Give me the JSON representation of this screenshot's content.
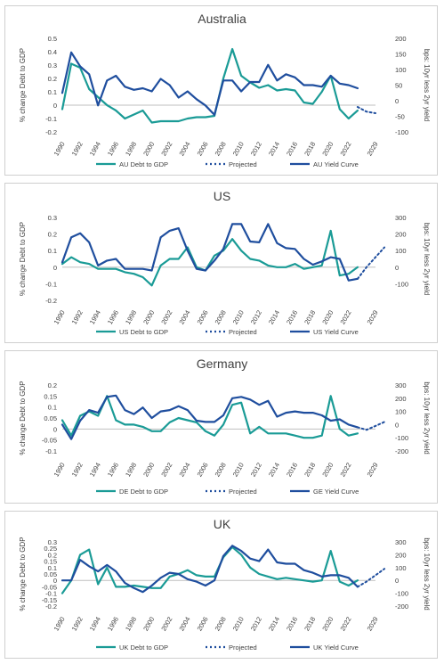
{
  "colors": {
    "debt": "#1a9b96",
    "yield": "#1f4e9e",
    "projected": "#1f4e9e",
    "axis": "#bfbfbf",
    "text": "#404040"
  },
  "chart_data": [
    {
      "type": "line",
      "title": "Australia",
      "ylabel": "% change Debt to GDP",
      "y2label": "bps: 10yr less 2yr yield",
      "ylim": [
        -0.2,
        0.5
      ],
      "yticks": [
        "-0.2",
        "-0.1",
        "0",
        "0.1",
        "0.2",
        "0.3",
        "0.4",
        "0.5"
      ],
      "y2lim": [
        -100,
        200
      ],
      "y2ticks": [
        "-100",
        "-50",
        "0",
        "50",
        "100",
        "150",
        "200"
      ],
      "xticks": [
        "1990",
        "1992",
        "1994",
        "1996",
        "1998",
        "2000",
        "2002",
        "2004",
        "2006",
        "2008",
        "2010",
        "2012",
        "2014",
        "2016",
        "2018",
        "2020",
        "2022",
        "2029"
      ],
      "legend": [
        "AU Debt to GDP",
        "Projected",
        "AU Yield Curve"
      ],
      "legend_position": "bottom",
      "series": [
        {
          "name": "AU Debt to GDP",
          "axis": "left",
          "x": [
            1990,
            1991,
            1992,
            1993,
            1994,
            1995,
            1996,
            1997,
            1998,
            1999,
            2000,
            2001,
            2002,
            2003,
            2004,
            2005,
            2006,
            2007,
            2008,
            2009,
            2010,
            2011,
            2012,
            2013,
            2014,
            2015,
            2016,
            2017,
            2018,
            2019,
            2020,
            2021,
            2022,
            2023
          ],
          "values": [
            -0.03,
            0.31,
            0.28,
            0.12,
            0.06,
            0.0,
            -0.04,
            -0.1,
            -0.07,
            -0.04,
            -0.13,
            -0.12,
            -0.12,
            -0.12,
            -0.1,
            -0.09,
            -0.09,
            -0.08,
            0.2,
            0.42,
            0.22,
            0.17,
            0.13,
            0.15,
            0.11,
            0.12,
            0.11,
            0.02,
            0.01,
            0.1,
            0.22,
            -0.03,
            -0.1,
            -0.04
          ]
        },
        {
          "name": "AU Yield Curve",
          "axis": "right",
          "x": [
            1990,
            1991,
            1992,
            1993,
            1994,
            1995,
            1996,
            1997,
            1998,
            1999,
            2000,
            2001,
            2002,
            2003,
            2004,
            2005,
            2006,
            2007,
            2008,
            2009,
            2010,
            2011,
            2012,
            2013,
            2014,
            2015,
            2016,
            2017,
            2018,
            2019,
            2020,
            2021,
            2022,
            2023
          ],
          "values": [
            25,
            155,
            110,
            85,
            -15,
            65,
            80,
            45,
            35,
            40,
            30,
            70,
            50,
            10,
            30,
            5,
            -15,
            -45,
            65,
            65,
            30,
            60,
            60,
            115,
            65,
            85,
            75,
            50,
            50,
            45,
            80,
            55,
            50,
            40
          ]
        },
        {
          "name": "Projected",
          "axis": "right",
          "style": "dotted",
          "x": [
            2023,
            2024,
            2025
          ],
          "values": [
            -20,
            -35,
            -40
          ]
        }
      ]
    },
    {
      "type": "line",
      "title": "US",
      "ylabel": "% change Debt to GDP",
      "y2label": "bps: 10yr less 2yr yield",
      "ylim": [
        -0.2,
        0.3
      ],
      "yticks": [
        "-0.2",
        "-0.1",
        "0",
        "0.1",
        "0.2",
        "0.3"
      ],
      "y2lim": [
        -200,
        300
      ],
      "y2ticks": [
        "-100",
        "0",
        "100",
        "200",
        "300"
      ],
      "xticks": [
        "1990",
        "1992",
        "1994",
        "1996",
        "1998",
        "2000",
        "2002",
        "2004",
        "2006",
        "2008",
        "2010",
        "2012",
        "2014",
        "2016",
        "2018",
        "2020",
        "2022",
        "2029"
      ],
      "legend": [
        "US Debt to GDP",
        "Projected",
        "US Yield Curve"
      ],
      "legend_position": "bottom",
      "series": [
        {
          "name": "US Debt to GDP",
          "axis": "left",
          "x": [
            1990,
            1991,
            1992,
            1993,
            1994,
            1995,
            1996,
            1997,
            1998,
            1999,
            2000,
            2001,
            2002,
            2003,
            2004,
            2005,
            2006,
            2007,
            2008,
            2009,
            2010,
            2011,
            2012,
            2013,
            2014,
            2015,
            2016,
            2017,
            2018,
            2019,
            2020,
            2021,
            2022,
            2023
          ],
          "values": [
            0.02,
            0.06,
            0.03,
            0.02,
            -0.01,
            -0.01,
            -0.01,
            -0.03,
            -0.04,
            -0.06,
            -0.11,
            0.01,
            0.05,
            0.05,
            0.12,
            0.0,
            -0.02,
            0.07,
            0.1,
            0.17,
            0.1,
            0.05,
            0.04,
            0.01,
            0.0,
            0.0,
            0.02,
            -0.01,
            0.0,
            0.01,
            0.22,
            -0.05,
            -0.04,
            0.0
          ]
        },
        {
          "name": "US Yield Curve",
          "axis": "right",
          "x": [
            1990,
            1991,
            1992,
            1993,
            1994,
            1995,
            1996,
            1997,
            1998,
            1999,
            2000,
            2001,
            2002,
            2003,
            2004,
            2005,
            2006,
            2007,
            2008,
            2009,
            2010,
            2011,
            2012,
            2013,
            2014,
            2015,
            2016,
            2017,
            2018,
            2019,
            2020,
            2021,
            2022,
            2023
          ],
          "values": [
            30,
            180,
            205,
            150,
            10,
            40,
            50,
            -10,
            -10,
            -10,
            -20,
            180,
            220,
            235,
            100,
            -10,
            -20,
            40,
            110,
            260,
            260,
            155,
            150,
            260,
            145,
            115,
            110,
            50,
            15,
            35,
            60,
            50,
            -80,
            -70
          ]
        },
        {
          "name": "Projected",
          "axis": "right",
          "style": "dotted",
          "x": [
            2023,
            2024,
            2025,
            2026
          ],
          "values": [
            -70,
            0,
            60,
            120
          ]
        }
      ]
    },
    {
      "type": "line",
      "title": "Germany",
      "ylabel": "% change Debt to GDP",
      "y2label": "bps: 10yr less 2yr yield",
      "ylim": [
        -0.1,
        0.2
      ],
      "yticks": [
        "-0.1",
        "-0.05",
        "0",
        "0.05",
        "0.1",
        "0.15",
        "0.2"
      ],
      "y2lim": [
        -200,
        300
      ],
      "y2ticks": [
        "-200",
        "-100",
        "0",
        "100",
        "200",
        "300"
      ],
      "xticks": [
        "1990",
        "1992",
        "1994",
        "1996",
        "1998",
        "2000",
        "2002",
        "2004",
        "2006",
        "2008",
        "2010",
        "2012",
        "2014",
        "2016",
        "2018",
        "2020",
        "2022",
        "2029"
      ],
      "legend": [
        "DE Debt to GDP",
        "Projected",
        "GE Yield Curve"
      ],
      "legend_position": "bottom",
      "series": [
        {
          "name": "DE Debt to GDP",
          "axis": "left",
          "x": [
            1990,
            1991,
            1992,
            1993,
            1994,
            1995,
            1996,
            1997,
            1998,
            1999,
            2000,
            2001,
            2002,
            2003,
            2004,
            2005,
            2006,
            2007,
            2008,
            2009,
            2010,
            2011,
            2012,
            2013,
            2014,
            2015,
            2016,
            2017,
            2018,
            2019,
            2020,
            2021,
            2022,
            2023
          ],
          "values": [
            0.04,
            -0.03,
            0.06,
            0.08,
            0.06,
            0.15,
            0.04,
            0.02,
            0.02,
            0.01,
            -0.01,
            -0.01,
            0.03,
            0.05,
            0.04,
            0.03,
            -0.01,
            -0.03,
            0.02,
            0.11,
            0.12,
            -0.02,
            0.01,
            -0.02,
            -0.02,
            -0.02,
            -0.03,
            -0.04,
            -0.04,
            -0.03,
            0.15,
            0.0,
            -0.03,
            -0.02
          ]
        },
        {
          "name": "GE Yield Curve",
          "axis": "right",
          "x": [
            1990,
            1991,
            1992,
            1993,
            1994,
            1995,
            1996,
            1997,
            1998,
            1999,
            2000,
            2001,
            2002,
            2003,
            2004,
            2005,
            2006,
            2007,
            2008,
            2009,
            2010,
            2011,
            2012,
            2013,
            2014,
            2015,
            2016,
            2017,
            2018,
            2019,
            2020,
            2021,
            2022,
            2023
          ],
          "values": [
            0,
            -110,
            30,
            110,
            90,
            210,
            220,
            110,
            80,
            130,
            50,
            100,
            110,
            140,
            110,
            30,
            20,
            20,
            70,
            200,
            210,
            190,
            150,
            180,
            60,
            90,
            100,
            90,
            90,
            70,
            30,
            40,
            0,
            -20
          ]
        },
        {
          "name": "Projected",
          "axis": "right",
          "style": "dotted",
          "x": [
            2023,
            2024,
            2025,
            2026
          ],
          "values": [
            -20,
            -40,
            -10,
            20
          ]
        }
      ]
    },
    {
      "type": "line",
      "title": "UK",
      "ylabel": "% change Debt to GDP",
      "y2label": "bps: 10yr less 2yr yield",
      "ylim": [
        -0.2,
        0.3
      ],
      "yticks": [
        "-0.2",
        "-0.15",
        "-0.1",
        "-0.05",
        "0",
        "0.05",
        "0.1",
        "0.15",
        "0.2",
        "0.25",
        "0.3"
      ],
      "y2lim": [
        -200,
        300
      ],
      "y2ticks": [
        "-200",
        "-100",
        "0",
        "100",
        "200",
        "300"
      ],
      "xticks": [
        "1990",
        "1992",
        "1994",
        "1996",
        "1998",
        "2000",
        "2002",
        "2004",
        "2006",
        "2008",
        "2010",
        "2012",
        "2014",
        "2016",
        "2018",
        "2020",
        "2022",
        "2029"
      ],
      "legend": [
        "UK Debt to GDP",
        "Projected",
        "UK Yield Curve"
      ],
      "legend_position": "bottom",
      "series": [
        {
          "name": "UK Debt to GDP",
          "axis": "left",
          "x": [
            1990,
            1991,
            1992,
            1993,
            1994,
            1995,
            1996,
            1997,
            1998,
            1999,
            2000,
            2001,
            2002,
            2003,
            2004,
            2005,
            2006,
            2007,
            2008,
            2009,
            2010,
            2011,
            2012,
            2013,
            2014,
            2015,
            2016,
            2017,
            2018,
            2019,
            2020,
            2021,
            2022,
            2023
          ],
          "values": [
            -0.1,
            0.0,
            0.2,
            0.24,
            -0.03,
            0.1,
            -0.05,
            -0.05,
            -0.04,
            -0.05,
            -0.06,
            -0.06,
            0.03,
            0.05,
            0.08,
            0.04,
            0.03,
            0.03,
            0.18,
            0.26,
            0.2,
            0.1,
            0.05,
            0.03,
            0.01,
            0.02,
            0.01,
            0.0,
            -0.01,
            0.0,
            0.23,
            -0.01,
            -0.04,
            0.0
          ]
        },
        {
          "name": "UK Yield Curve",
          "axis": "right",
          "x": [
            1990,
            1991,
            1992,
            1993,
            1994,
            1995,
            1996,
            1997,
            1998,
            1999,
            2000,
            2001,
            2002,
            2003,
            2004,
            2005,
            2006,
            2007,
            2008,
            2009,
            2010,
            2011,
            2012,
            2013,
            2014,
            2015,
            2016,
            2017,
            2018,
            2019,
            2020,
            2021,
            2022,
            2023
          ],
          "values": [
            0,
            0,
            160,
            110,
            70,
            120,
            70,
            -20,
            -60,
            -90,
            -40,
            20,
            60,
            50,
            10,
            -10,
            -40,
            0,
            190,
            270,
            230,
            170,
            150,
            240,
            140,
            130,
            130,
            80,
            60,
            30,
            40,
            40,
            20,
            -50
          ]
        },
        {
          "name": "Projected",
          "axis": "right",
          "style": "dotted",
          "x": [
            2023,
            2024,
            2025,
            2026
          ],
          "values": [
            -50,
            -10,
            40,
            90
          ]
        }
      ]
    }
  ]
}
